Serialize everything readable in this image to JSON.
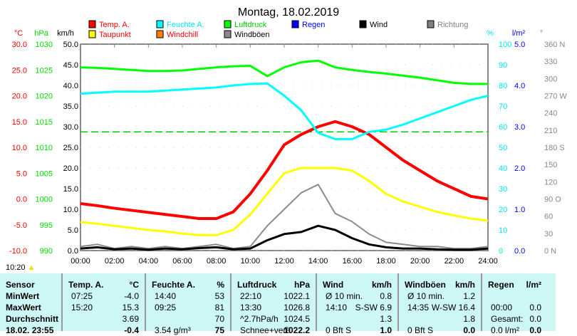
{
  "chart_data": {
    "type": "line",
    "title": "Montag, 18.02.2019",
    "x_hours": [
      0,
      1,
      2,
      3,
      4,
      5,
      6,
      7,
      8,
      9,
      10,
      11,
      12,
      13,
      14,
      15,
      16,
      17,
      18,
      19,
      20,
      21,
      22,
      23,
      24
    ],
    "x_ticks": [
      "00:00",
      "02:00",
      "04:00",
      "06:00",
      "08:00",
      "10:00",
      "12:00",
      "14:00",
      "16:00",
      "18:00",
      "20:00",
      "22:00",
      "24:00"
    ],
    "axes": {
      "temp": {
        "unit": "°C",
        "range": [
          -10,
          30
        ],
        "ticks": [
          "30.0",
          "25.0",
          "20.0",
          "15.0",
          "10.0",
          "5.0",
          "0.0",
          "-5.0",
          "-10.0"
        ],
        "color": "#ff0000"
      },
      "pressure": {
        "unit": "hPa",
        "range": [
          990,
          1030
        ],
        "ticks": [
          "1030",
          "1025",
          "1020",
          "1015",
          "1010",
          "1005",
          "1000",
          "995",
          "990"
        ],
        "color": "#00dd00"
      },
      "wind": {
        "unit": "km/h",
        "range": [
          0,
          50
        ],
        "ticks": [
          "50.0",
          "45.0",
          "40.0",
          "35.0",
          "30.0",
          "25.0",
          "20.0",
          "15.0",
          "10.0",
          "5.0",
          "0.0"
        ],
        "color": "#000000"
      },
      "humidity": {
        "unit": "%",
        "range": [
          0,
          100
        ],
        "ticks": [
          "100",
          "90",
          "80",
          "70",
          "60",
          "50",
          "40",
          "30",
          "20",
          "10",
          "0"
        ],
        "color": "#00e5ee"
      },
      "rain": {
        "unit": "l/m²",
        "range": [
          0,
          5
        ],
        "ticks": [
          "5.0",
          "4.0",
          "3.0",
          "2.0",
          "1.0",
          "0.0"
        ],
        "color": "#0000ff"
      },
      "direction": {
        "unit": "°",
        "range": [
          0,
          360
        ],
        "ticks": [
          "360 N",
          "330",
          "300",
          "270 W",
          "240",
          "210",
          "180 S",
          "150",
          "120",
          "90 O",
          "60",
          "30",
          "0 N"
        ],
        "color": "#888888"
      }
    },
    "legend": [
      {
        "name": "Temp. A.",
        "color": "#ff0000",
        "text_color": "#ff0000"
      },
      {
        "name": "Feuchte A.",
        "color": "#00ffff",
        "text_color": "#00e5ee"
      },
      {
        "name": "Luftdruck",
        "color": "#00ff00",
        "text_color": "#00cc00"
      },
      {
        "name": "Regen",
        "color": "#0000ff",
        "text_color": "#0000ff"
      },
      {
        "name": "Wind",
        "color": "#000000",
        "text_color": "#000000"
      },
      {
        "name": "Richtung",
        "color": "#808080",
        "text_color": "#808080"
      },
      {
        "name": "Taupunkt",
        "color": "#ffff00",
        "text_color": "#ff0000"
      },
      {
        "name": "Windchill",
        "color": "#ff8000",
        "text_color": "#ff0000"
      },
      {
        "name": "Windböen",
        "color": "#908890",
        "text_color": "#000000"
      }
    ],
    "series": [
      {
        "name": "Temp. A.",
        "axis": "temp",
        "color": "#ff0000",
        "width": 4,
        "values": [
          -0.9,
          -1.3,
          -1.8,
          -2.2,
          -2.6,
          -3.0,
          -3.4,
          -3.8,
          -3.8,
          -2.5,
          1.0,
          5.5,
          10.5,
          12.5,
          14.0,
          15.0,
          14.0,
          12.5,
          10.0,
          7.5,
          5.5,
          3.5,
          2.0,
          0.5,
          0.0
        ]
      },
      {
        "name": "Taupunkt",
        "axis": "temp",
        "color": "#ffff00",
        "width": 3,
        "values": [
          -4.5,
          -4.8,
          -5.2,
          -5.6,
          -6.0,
          -6.3,
          -6.7,
          -7.0,
          -7.0,
          -6.0,
          -3.0,
          1.0,
          5.0,
          6.0,
          6.0,
          6.0,
          5.5,
          3.5,
          1.0,
          -0.5,
          -1.5,
          -2.5,
          -3.2,
          -3.8,
          -4.2
        ]
      },
      {
        "name": "Feuchte A.",
        "axis": "humidity",
        "color": "#00ffff",
        "width": 3,
        "values": [
          76,
          76.5,
          77,
          77,
          77,
          77.5,
          78,
          78.5,
          79,
          80,
          80.7,
          81,
          75,
          68,
          57,
          54,
          54,
          57.5,
          58.6,
          61,
          64,
          67,
          70,
          73,
          75
        ]
      },
      {
        "name": "Luftdruck",
        "axis": "pressure",
        "color": "#00ff00",
        "width": 3,
        "values": [
          1025.5,
          1025.4,
          1025.2,
          1025,
          1024.8,
          1024.8,
          1024.9,
          1025.2,
          1025.5,
          1025.7,
          1025.8,
          1023.8,
          1025.5,
          1026.5,
          1026.8,
          1025.5,
          1025,
          1024.6,
          1024.3,
          1023.9,
          1023.5,
          1023,
          1022.5,
          1022.3,
          1022.3
        ]
      },
      {
        "name": "Windböen",
        "axis": "wind",
        "color": "#908890",
        "width": 2,
        "values": [
          1,
          1.5,
          0.5,
          1,
          0.5,
          1,
          0.5,
          1,
          1.5,
          0.5,
          1,
          6,
          10,
          14,
          16,
          9,
          7,
          4,
          2,
          1.5,
          1,
          1,
          0.5,
          0.5,
          1
        ]
      },
      {
        "name": "Wind",
        "axis": "wind",
        "color": "#000000",
        "width": 3,
        "values": [
          0.5,
          0.8,
          0.3,
          0.5,
          0.2,
          0.5,
          0.3,
          0.6,
          0.8,
          0.3,
          0.5,
          2.5,
          4,
          4.5,
          6,
          5,
          3,
          1.5,
          0.8,
          0.5,
          0.5,
          0.3,
          0.2,
          0.2,
          0.5
        ]
      }
    ],
    "reference_line": {
      "axis": "humidity",
      "value": 57.5,
      "color": "#00cc00",
      "style": "dashed"
    }
  },
  "sunrise_time": "10:20",
  "table": {
    "headers": [
      {
        "label": "Sensor",
        "unit": ""
      },
      {
        "label": "Temp. A.",
        "unit": "°C"
      },
      {
        "label": "Feuchte A.",
        "unit": "%"
      },
      {
        "label": "Luftdruck",
        "unit": "hPa"
      },
      {
        "label": "Wind",
        "unit": "km/h"
      },
      {
        "label": "Windböen",
        "unit": "km/h"
      },
      {
        "label": "Regen",
        "unit": "l/m²"
      }
    ],
    "rows": [
      {
        "label": "MinWert",
        "cells": [
          [
            "07:25",
            "-4.0"
          ],
          [
            "14:40",
            "53"
          ],
          [
            "22:10",
            "1022.1"
          ],
          [
            "Ø 10 min.",
            "0.8"
          ],
          [
            "Ø 10 min.",
            "1.2"
          ],
          [
            "",
            ""
          ]
        ]
      },
      {
        "label": "MaxWert",
        "cells": [
          [
            "15:20",
            "15.3"
          ],
          [
            "09:25",
            "81"
          ],
          [
            "13:30",
            "1026.8"
          ],
          [
            "14:10",
            "S-SW 6.9"
          ],
          [
            "14:35",
            "W-SW 16.4"
          ],
          [
            "00:00",
            "0.0"
          ]
        ]
      },
      {
        "label": "Durchschnitt",
        "cells": [
          [
            "",
            "3.69"
          ],
          [
            "",
            "70"
          ],
          [
            "^2.7hPa/h",
            "1024.5"
          ],
          [
            "",
            "1.3"
          ],
          [
            "",
            "1.8"
          ],
          [
            "Gesamt:",
            "0.0"
          ]
        ]
      },
      {
        "label": "18.02. 23:55",
        "cells": [
          [
            "",
            "-0.4"
          ],
          [
            "3.54 g/m³",
            "75"
          ],
          [
            "Schnee+verä",
            "1022.2"
          ],
          [
            "0 Bft S",
            "1.0"
          ],
          [
            "0 Bft S",
            "0.0"
          ],
          [
            "0.0 l/m²",
            "0.0"
          ]
        ]
      }
    ]
  }
}
